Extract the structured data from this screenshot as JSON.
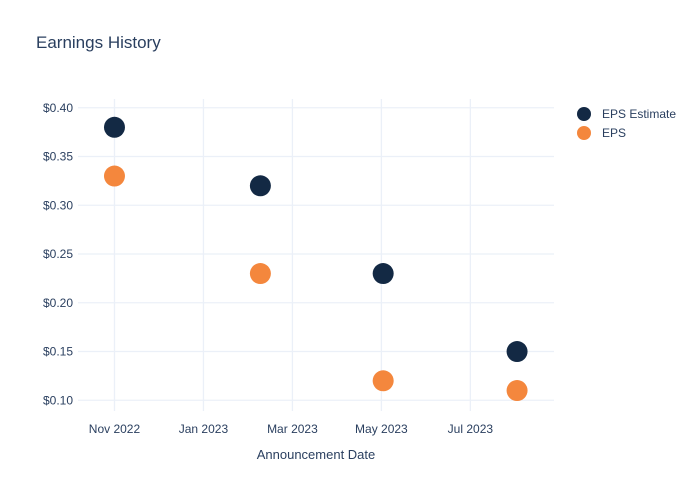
{
  "chart_data": {
    "type": "scatter",
    "title": "Earnings History",
    "xlabel": "Announcement Date",
    "ylabel": "",
    "grid": true,
    "legend_position": "outside-top-right",
    "x_tick_labels": [
      "Nov 2022",
      "Jan 2023",
      "Mar 2023",
      "May 2023",
      "Jul 2023"
    ],
    "x_tick_positions_months": [
      0,
      2,
      4,
      6,
      8
    ],
    "y_tick_labels": [
      "$0.10",
      "$0.15",
      "$0.20",
      "$0.25",
      "$0.30",
      "$0.35",
      "$0.40"
    ],
    "y_tick_values": [
      0.1,
      0.15,
      0.2,
      0.25,
      0.3,
      0.35,
      0.4
    ],
    "xlim_months": [
      -0.82,
      9.88
    ],
    "ylim": [
      0.089,
      0.409
    ],
    "marker_diameter_px": 21,
    "series": [
      {
        "name": "EPS Estimate",
        "color": "#132944",
        "x_months": [
          0,
          3.28,
          6.04,
          9.05
        ],
        "x_approx": [
          "Nov 2022",
          "Feb 2023",
          "May 2023",
          "Aug 2023"
        ],
        "values": [
          0.38,
          0.32,
          0.23,
          0.15
        ]
      },
      {
        "name": "EPS",
        "color": "#F4873D",
        "x_months": [
          0,
          3.28,
          6.04,
          9.05
        ],
        "x_approx": [
          "Nov 2022",
          "Feb 2023",
          "May 2023",
          "Aug 2023"
        ],
        "values": [
          0.33,
          0.23,
          0.12,
          0.11
        ]
      }
    ],
    "colors": {
      "title_text": "#2a3f5f",
      "tick_text": "#2a3f5f",
      "grid": "#ebf0f8",
      "background": "#ffffff"
    }
  }
}
